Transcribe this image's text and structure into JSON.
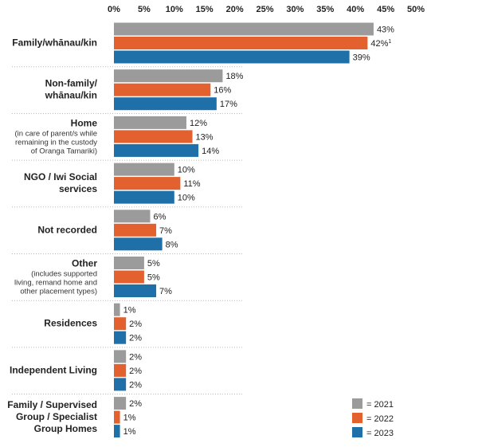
{
  "chart_data": {
    "type": "bar",
    "orientation": "horizontal",
    "xlim": [
      0,
      50
    ],
    "ticks": [
      "0%",
      "5%",
      "10%",
      "15%",
      "20%",
      "25%",
      "30%",
      "35%",
      "40%",
      "45%",
      "50%"
    ],
    "grid": false,
    "legend_position": "bottom-right",
    "colors": {
      "2021": "#9b9b9b",
      "2022": "#e2612e",
      "2023": "#1f6fa8"
    },
    "categories": [
      {
        "label": [
          "Family/whānau/kin"
        ],
        "sub": []
      },
      {
        "label": [
          "Non-family/",
          "whānau/kin"
        ],
        "sub": []
      },
      {
        "label": [
          "Home"
        ],
        "sub": [
          "(in care of parent/s while",
          "remaining in the custody",
          "of Oranga Tamariki)"
        ]
      },
      {
        "label": [
          "NGO / Iwi Social",
          "services"
        ],
        "sub": []
      },
      {
        "label": [
          "Not recorded"
        ],
        "sub": []
      },
      {
        "label": [
          "Other"
        ],
        "sub": [
          "(includes supported",
          "living, remand home and",
          "other placement types)"
        ]
      },
      {
        "label": [
          "Residences"
        ],
        "sub": []
      },
      {
        "label": [
          "Independent Living"
        ],
        "sub": []
      },
      {
        "label": [
          "Family / Supervised",
          "Group / Specialist",
          "Group Homes"
        ],
        "sub": []
      }
    ],
    "series": [
      {
        "name": "= 2021",
        "key": "2021",
        "values": [
          43,
          18,
          12,
          10,
          6,
          5,
          1,
          2,
          2
        ]
      },
      {
        "name": "= 2022",
        "key": "2022",
        "values": [
          42,
          16,
          13,
          11,
          7,
          5,
          2,
          2,
          1
        ]
      },
      {
        "name": "= 2023",
        "key": "2023",
        "values": [
          39,
          17,
          14,
          10,
          8,
          7,
          2,
          2,
          1
        ]
      }
    ],
    "value_suffix": "%",
    "annotations": [
      {
        "series": "2022",
        "category": 0,
        "superscript": "1"
      }
    ]
  }
}
